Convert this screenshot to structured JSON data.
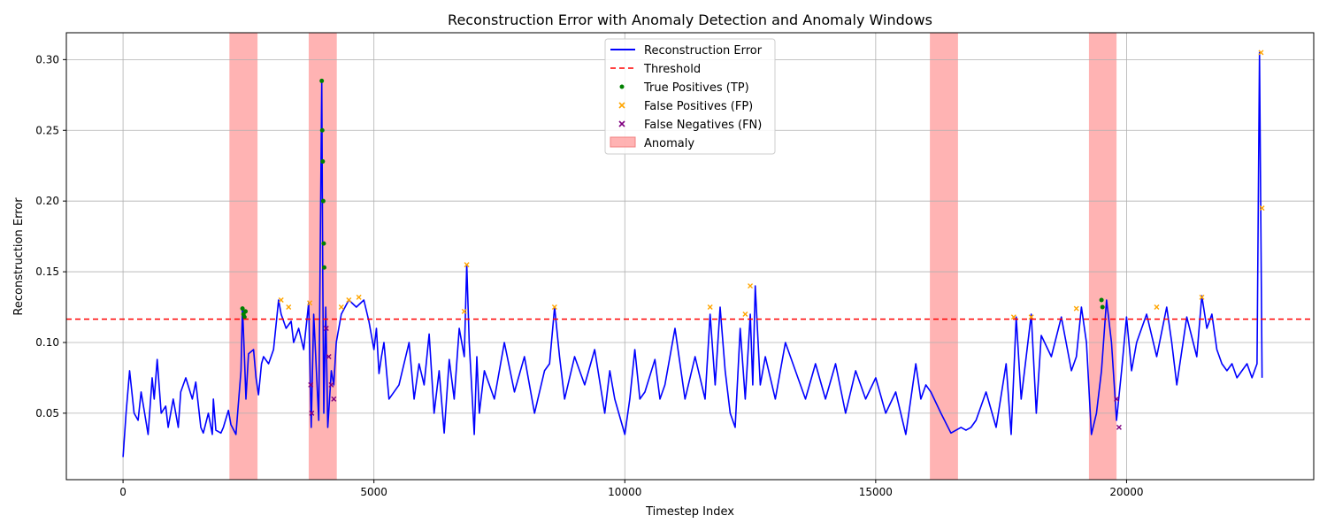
{
  "chart_data": {
    "type": "line",
    "title": "Reconstruction Error with Anomaly Detection and Anomaly Windows",
    "xlabel": "Timestep Index",
    "ylabel": "Reconstruction Error",
    "xlim": [
      -1130,
      23730
    ],
    "ylim": [
      0.003,
      0.319
    ],
    "xticks": [
      0,
      5000,
      10000,
      15000,
      20000
    ],
    "yticks": [
      0.05,
      0.1,
      0.15,
      0.2,
      0.25,
      0.3
    ],
    "ytick_labels": [
      "0.05",
      "0.10",
      "0.15",
      "0.20",
      "0.25",
      "0.30"
    ],
    "grid": true,
    "legend_position": "top-center",
    "threshold": 0.1165,
    "anomaly_windows": [
      [
        2120,
        2680
      ],
      [
        3700,
        4260
      ],
      [
        16080,
        16640
      ],
      [
        19250,
        19800
      ]
    ],
    "series": [
      {
        "name": "Reconstruction Error",
        "color": "#0000ff",
        "x": [
          0,
          60,
          130,
          220,
          300,
          360,
          430,
          500,
          580,
          620,
          680,
          760,
          850,
          900,
          1000,
          1100,
          1150,
          1250,
          1380,
          1450,
          1550,
          1600,
          1700,
          1780,
          1800,
          1850,
          1950,
          2000,
          2100,
          2150,
          2250,
          2350,
          2380,
          2420,
          2450,
          2500,
          2600,
          2650,
          2700,
          2760,
          2800,
          2900,
          3000,
          3100,
          3150,
          3250,
          3350,
          3400,
          3500,
          3600,
          3700,
          3750,
          3800,
          3900,
          3960,
          3980,
          4000,
          4040,
          4080,
          4150,
          4200,
          4250,
          4350,
          4500,
          4650,
          4800,
          4900,
          5000,
          5050,
          5100,
          5150,
          5200,
          5300,
          5500,
          5700,
          5800,
          5900,
          6000,
          6100,
          6200,
          6300,
          6400,
          6500,
          6600,
          6700,
          6800,
          6850,
          6900,
          7000,
          7050,
          7100,
          7200,
          7400,
          7600,
          7800,
          8000,
          8200,
          8400,
          8500,
          8600,
          8700,
          8800,
          9000,
          9200,
          9400,
          9600,
          9700,
          9800,
          10000,
          10100,
          10200,
          10300,
          10400,
          10600,
          10700,
          10800,
          11000,
          11200,
          11400,
          11600,
          11700,
          11800,
          11900,
          12000,
          12100,
          12200,
          12300,
          12400,
          12500,
          12550,
          12600,
          12700,
          12800,
          13000,
          13200,
          13400,
          13600,
          13800,
          14000,
          14200,
          14400,
          14600,
          14800,
          15000,
          15200,
          15400,
          15600,
          15800,
          15900,
          16000,
          16100,
          16300,
          16500,
          16700,
          16800,
          16900,
          17000,
          17200,
          17400,
          17600,
          17700,
          17800,
          17900,
          18000,
          18100,
          18200,
          18300,
          18500,
          18700,
          18900,
          19000,
          19100,
          19200,
          19300,
          19400,
          19500,
          19600,
          19700,
          19800,
          19900,
          20000,
          20100,
          20200,
          20400,
          20600,
          20800,
          20900,
          21000,
          21200,
          21400,
          21500,
          21600,
          21700,
          21800,
          21900,
          22000,
          22100,
          22200,
          22300,
          22400,
          22500,
          22600,
          22650,
          22700
        ],
        "y": [
          0.019,
          0.05,
          0.08,
          0.05,
          0.045,
          0.065,
          0.05,
          0.035,
          0.075,
          0.06,
          0.088,
          0.05,
          0.055,
          0.04,
          0.06,
          0.04,
          0.065,
          0.075,
          0.06,
          0.072,
          0.04,
          0.036,
          0.05,
          0.035,
          0.06,
          0.038,
          0.036,
          0.04,
          0.052,
          0.042,
          0.035,
          0.08,
          0.125,
          0.09,
          0.06,
          0.092,
          0.095,
          0.075,
          0.063,
          0.085,
          0.09,
          0.085,
          0.095,
          0.13,
          0.12,
          0.11,
          0.115,
          0.1,
          0.11,
          0.095,
          0.128,
          0.04,
          0.12,
          0.045,
          0.285,
          0.15,
          0.05,
          0.125,
          0.04,
          0.08,
          0.07,
          0.1,
          0.12,
          0.13,
          0.125,
          0.13,
          0.115,
          0.095,
          0.11,
          0.078,
          0.09,
          0.1,
          0.06,
          0.07,
          0.1,
          0.06,
          0.085,
          0.07,
          0.106,
          0.05,
          0.08,
          0.036,
          0.088,
          0.06,
          0.11,
          0.09,
          0.155,
          0.1,
          0.035,
          0.09,
          0.05,
          0.08,
          0.06,
          0.1,
          0.065,
          0.09,
          0.05,
          0.08,
          0.085,
          0.125,
          0.09,
          0.06,
          0.09,
          0.07,
          0.095,
          0.05,
          0.08,
          0.06,
          0.035,
          0.06,
          0.095,
          0.06,
          0.065,
          0.088,
          0.06,
          0.07,
          0.11,
          0.06,
          0.09,
          0.06,
          0.12,
          0.07,
          0.125,
          0.08,
          0.05,
          0.04,
          0.11,
          0.06,
          0.12,
          0.07,
          0.14,
          0.07,
          0.09,
          0.06,
          0.1,
          0.08,
          0.06,
          0.085,
          0.06,
          0.085,
          0.05,
          0.08,
          0.06,
          0.075,
          0.05,
          0.065,
          0.035,
          0.085,
          0.06,
          0.07,
          0.065,
          0.05,
          0.036,
          0.04,
          0.038,
          0.04,
          0.045,
          0.065,
          0.04,
          0.085,
          0.035,
          0.118,
          0.06,
          0.09,
          0.12,
          0.05,
          0.105,
          0.09,
          0.118,
          0.08,
          0.09,
          0.125,
          0.1,
          0.035,
          0.05,
          0.08,
          0.13,
          0.1,
          0.045,
          0.08,
          0.118,
          0.08,
          0.1,
          0.12,
          0.09,
          0.125,
          0.1,
          0.07,
          0.118,
          0.09,
          0.133,
          0.11,
          0.12,
          0.095,
          0.085,
          0.08,
          0.085,
          0.075,
          0.08,
          0.085,
          0.075,
          0.085,
          0.305,
          0.075
        ]
      },
      {
        "name": "Threshold",
        "color": "#ff0000"
      },
      {
        "name": "True Positives (TP)",
        "color": "#008000",
        "x": [
          2380,
          2400,
          2420,
          2440,
          3960,
          3970,
          3980,
          3990,
          4000,
          4010,
          19500,
          19520
        ],
        "y": [
          0.124,
          0.12,
          0.118,
          0.122,
          0.285,
          0.25,
          0.228,
          0.2,
          0.17,
          0.153,
          0.13,
          0.125
        ]
      },
      {
        "name": "False Positives (FP)",
        "color": "#ffa500",
        "x": [
          3150,
          3300,
          3720,
          4350,
          4500,
          4700,
          6800,
          6850,
          8600,
          11700,
          12400,
          12500,
          17750,
          18100,
          19000,
          20600,
          21500,
          22680,
          22700
        ],
        "y": [
          0.13,
          0.125,
          0.128,
          0.125,
          0.13,
          0.132,
          0.122,
          0.155,
          0.125,
          0.125,
          0.12,
          0.14,
          0.118,
          0.118,
          0.124,
          0.125,
          0.132,
          0.305,
          0.195
        ]
      },
      {
        "name": "False Negatives (FN)",
        "color": "#800080",
        "x": [
          3740,
          3760,
          4050,
          4100,
          4150,
          4200,
          19850,
          19800
        ],
        "y": [
          0.07,
          0.05,
          0.11,
          0.09,
          0.07,
          0.06,
          0.04,
          0.06
        ]
      },
      {
        "name": "Anomaly",
        "color": "#ff9999"
      }
    ]
  }
}
